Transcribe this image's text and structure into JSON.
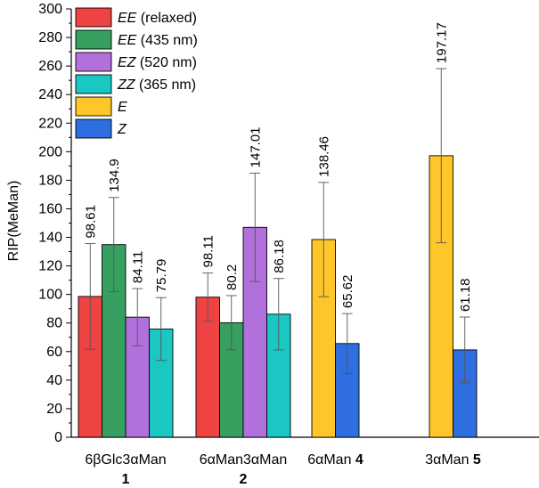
{
  "chart_data": {
    "type": "bar",
    "title": "",
    "xlabel": "",
    "ylabel": "RIP(MeMan)",
    "ylim": [
      0,
      300
    ],
    "ytick_step": 20,
    "grid": false,
    "legend_position": "top-left",
    "legend": [
      {
        "name": "EE",
        "suffix": " (relaxed)",
        "color": "#ef4343"
      },
      {
        "name": "EE",
        "suffix": " (435 nm)",
        "color": "#37a060"
      },
      {
        "name": "EZ",
        "suffix": " (520 nm)",
        "color": "#b170dc"
      },
      {
        "name": "ZZ",
        "suffix": " (365 nm)",
        "color": "#1ac7c2"
      },
      {
        "name": "E",
        "suffix": "",
        "color": "#ffc629"
      },
      {
        "name": "Z",
        "suffix": "",
        "color": "#2e6ee0"
      }
    ],
    "groups": [
      {
        "name": "6βGlc3αMan",
        "number": "1",
        "bars": [
          {
            "series": 0,
            "value": 98.61,
            "label": "98.61",
            "err": 37
          },
          {
            "series": 1,
            "value": 134.9,
            "label": "134.9",
            "err": 33
          },
          {
            "series": 2,
            "value": 84.11,
            "label": "84.11",
            "err": 20
          },
          {
            "series": 3,
            "value": 75.79,
            "label": "75.79",
            "err": 22
          }
        ]
      },
      {
        "name": "6αMan3αMan",
        "number": "2",
        "bars": [
          {
            "series": 0,
            "value": 98.11,
            "label": "98.11",
            "err": 17
          },
          {
            "series": 1,
            "value": 80.2,
            "label": "80.2",
            "err": 19
          },
          {
            "series": 2,
            "value": 147.01,
            "label": "147.01",
            "err": 38
          },
          {
            "series": 3,
            "value": 86.18,
            "label": "86.18",
            "err": 25
          }
        ]
      },
      {
        "name": "6αMan ",
        "number": "4",
        "bars": [
          {
            "series": 4,
            "value": 138.46,
            "label": "138.46",
            "err": 40
          },
          {
            "series": 5,
            "value": 65.62,
            "label": "65.62",
            "err": 21
          }
        ]
      },
      {
        "name": "3αMan ",
        "number": "5",
        "bars": [
          {
            "series": 4,
            "value": 197.17,
            "label": "197.17",
            "err": 61
          },
          {
            "series": 5,
            "value": 61.18,
            "label": "61.18",
            "err": 23
          }
        ]
      }
    ]
  }
}
